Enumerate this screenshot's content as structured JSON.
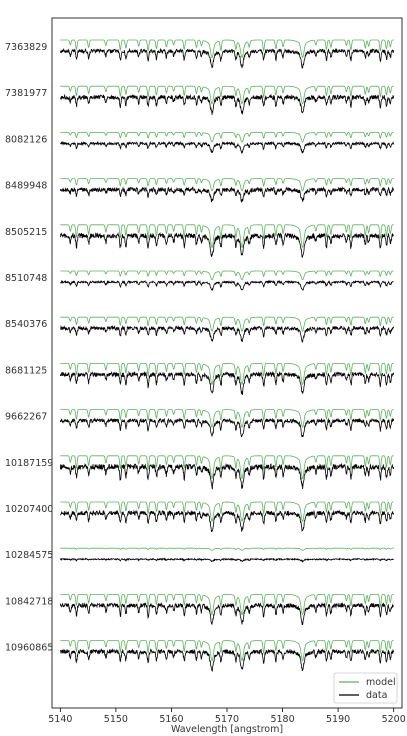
{
  "chart_data": {
    "type": "line",
    "xlabel": "Wavelength [angstrom]",
    "xlim": [
      5138.5,
      5201.5
    ],
    "xticks": [
      5140,
      5150,
      5160,
      5170,
      5180,
      5190,
      5200
    ],
    "xtick_labels": [
      "5140",
      "5150",
      "5160",
      "5170",
      "5180",
      "5190",
      "5200"
    ],
    "grid": false,
    "legend_position": "bottom-right",
    "legend": [
      {
        "label": "model",
        "color": "#5cb25c"
      },
      {
        "label": "data",
        "color": "#000000"
      }
    ],
    "stars": [
      {
        "id": "7363829",
        "line_depth": 1.0,
        "noise": 0.3
      },
      {
        "id": "7381977",
        "line_depth": 1.0,
        "noise": 0.35
      },
      {
        "id": "8082126",
        "line_depth": 0.55,
        "noise": 0.2
      },
      {
        "id": "8489948",
        "line_depth": 0.7,
        "noise": 0.35
      },
      {
        "id": "8505215",
        "line_depth": 1.3,
        "noise": 0.4
      },
      {
        "id": "8510748",
        "line_depth": 0.5,
        "noise": 0.15
      },
      {
        "id": "8540376",
        "line_depth": 0.8,
        "noise": 0.3
      },
      {
        "id": "8681125",
        "line_depth": 1.2,
        "noise": 0.35
      },
      {
        "id": "9662267",
        "line_depth": 1.0,
        "noise": 0.3
      },
      {
        "id": "10187159",
        "line_depth": 1.3,
        "noise": 0.45
      },
      {
        "id": "10207400",
        "line_depth": 1.1,
        "noise": 0.35
      },
      {
        "id": "10284575",
        "line_depth": 0.12,
        "noise": 0.1
      },
      {
        "id": "10842718",
        "line_depth": 1.15,
        "noise": 0.35
      },
      {
        "id": "10960865",
        "line_depth": 1.15,
        "noise": 0.35
      }
    ],
    "series": [
      {
        "name": "model",
        "color": "#5cb25c"
      },
      {
        "name": "data",
        "color": "#000000"
      }
    ],
    "strong_lines": [
      5167.3,
      5172.7,
      5183.6
    ],
    "weak_lines": [
      5141.8,
      5142.9,
      5145.1,
      5148.2,
      5150.8,
      5151.8,
      5154.1,
      5155.8,
      5157.3,
      5159.1,
      5160.4,
      5162.3,
      5164.5,
      5165.4,
      5168.9,
      5171.6,
      5174.0,
      5176.6,
      5178.8,
      5180.1,
      5186.0,
      5187.9,
      5188.7,
      5191.5,
      5192.3,
      5194.9,
      5195.5,
      5197.6,
      5198.7,
      5199.4
    ]
  }
}
